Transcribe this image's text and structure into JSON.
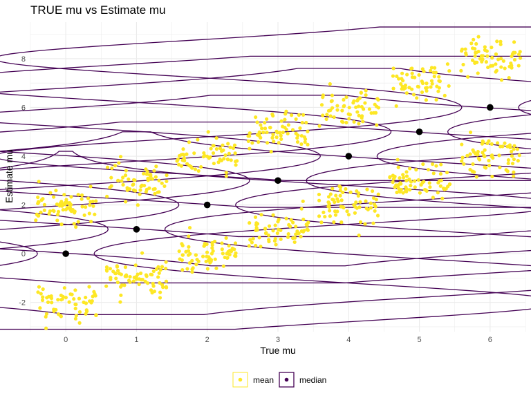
{
  "chart_data": {
    "type": "scatter",
    "title": "TRUE mu vs Estimate mu",
    "xlabel": "True mu",
    "ylabel": "Estimate mu",
    "x_ticks": [
      "0",
      "1",
      "2",
      "3",
      "4",
      "5",
      "6"
    ],
    "y_ticks": [
      "-2",
      "0",
      "2",
      "4",
      "6",
      "8"
    ],
    "xlim": [
      -0.5,
      6.5
    ],
    "ylim": [
      -3.2,
      9.5
    ],
    "grid": true,
    "legend_position": "bottom",
    "legend": [
      {
        "label": "mean",
        "color": "#fde725",
        "key": "point"
      },
      {
        "label": "median",
        "color": "#440154",
        "key": "violin"
      }
    ],
    "groups": [
      {
        "x": 0,
        "median": 0,
        "clusters": [
          -2,
          2
        ],
        "range": [
          -3.1,
          4.2
        ]
      },
      {
        "x": 1,
        "median": 1,
        "clusters": [
          -1,
          3
        ],
        "range": [
          -2.5,
          5.0
        ]
      },
      {
        "x": 2,
        "median": 2,
        "clusters": [
          0,
          4
        ],
        "range": [
          -1.2,
          5.4
        ]
      },
      {
        "x": 3,
        "median": 3,
        "clusters": [
          1,
          5
        ],
        "range": [
          -0.5,
          6.5
        ]
      },
      {
        "x": 4,
        "median": 4,
        "clusters": [
          2,
          6
        ],
        "range": [
          0.7,
          7.6
        ]
      },
      {
        "x": 5,
        "median": 5,
        "clusters": [
          3,
          7
        ],
        "range": [
          1.9,
          8.1
        ]
      },
      {
        "x": 6,
        "median": 6,
        "clusters": [
          4,
          8
        ],
        "range": [
          3.0,
          9.3
        ]
      }
    ],
    "colors": {
      "mean": "#fde725",
      "median": "#440154",
      "median_point": "#000000"
    }
  }
}
